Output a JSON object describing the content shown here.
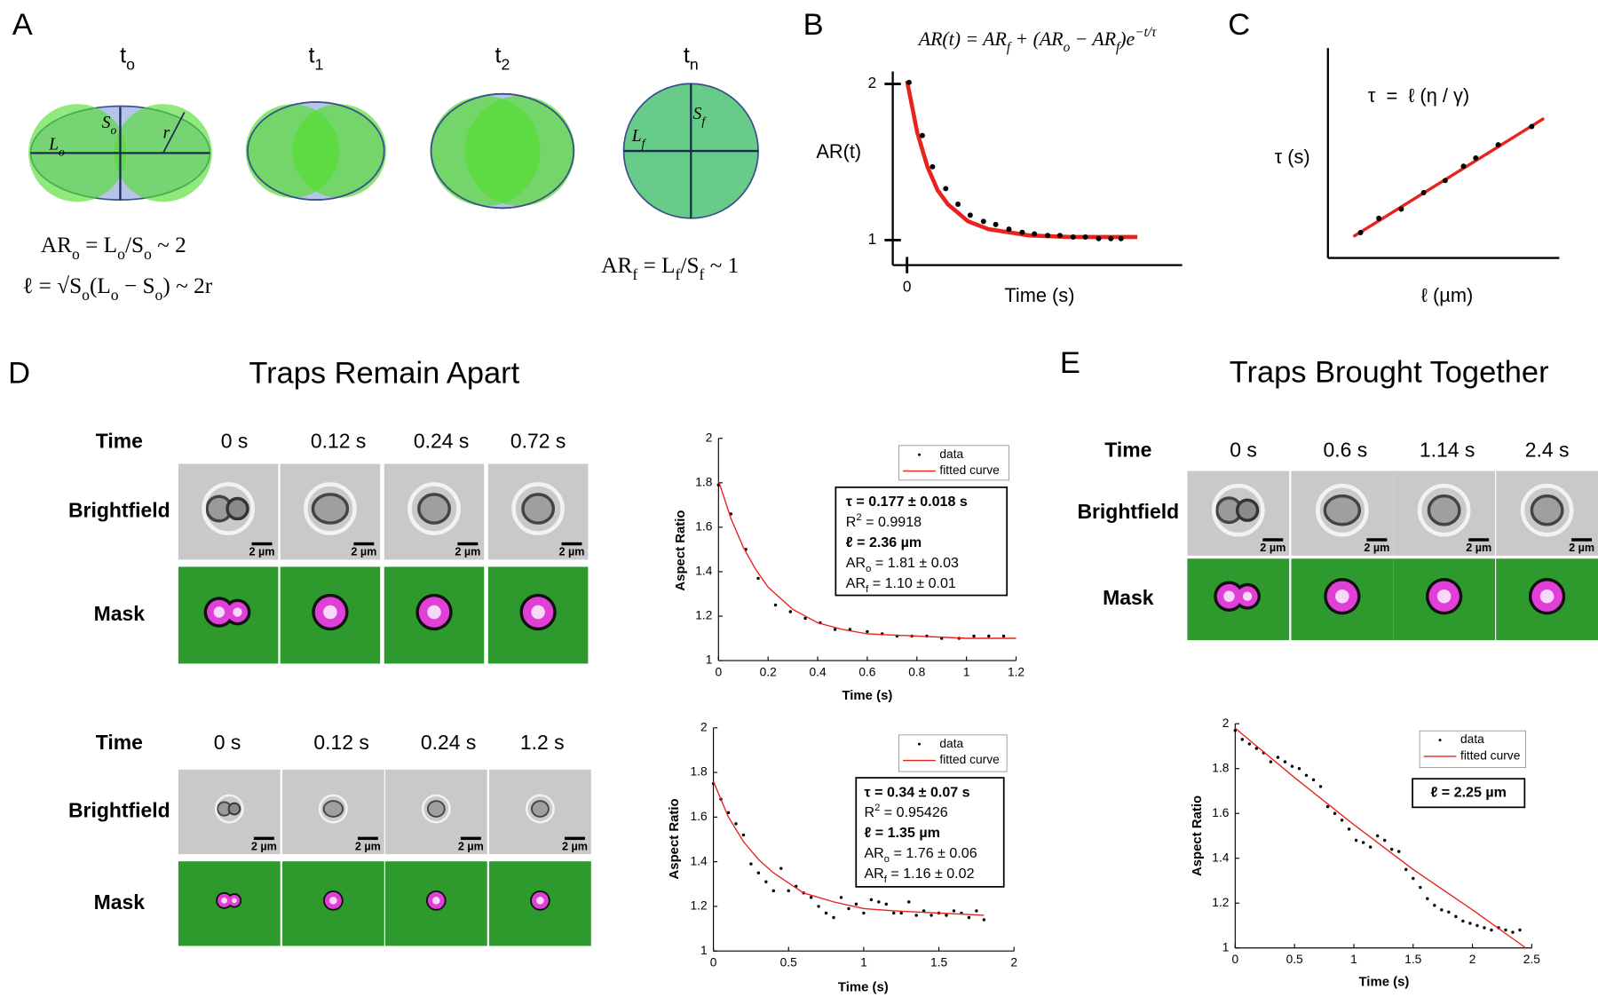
{
  "panel_labels": [
    "A",
    "B",
    "C",
    "D",
    "E"
  ],
  "panel_a": {
    "stages": [
      [
        {
          "t": "t"
        },
        {
          "sub": "o"
        }
      ],
      [
        {
          "t": "t"
        },
        {
          "sub": "1"
        }
      ],
      [
        {
          "t": "t"
        },
        {
          "sub": "2"
        }
      ],
      [
        {
          "t": "t"
        },
        {
          "sub": "n"
        }
      ]
    ],
    "initial_labels": {
      "short_axis": [
        {
          "t": "S"
        },
        {
          "sub": "o"
        }
      ],
      "long_axis": [
        {
          "t": "L"
        },
        {
          "sub": "o"
        }
      ],
      "radius": [
        {
          "t": "r"
        }
      ]
    },
    "final_labels": {
      "long_axis": [
        {
          "t": "L"
        },
        {
          "sub": "f"
        }
      ],
      "short_axis": [
        {
          "t": "S"
        },
        {
          "sub": "f"
        }
      ]
    },
    "formulas": [
      [
        {
          "t": "AR"
        },
        {
          "sub": "o"
        },
        {
          "t": " = L"
        },
        {
          "sub": "o"
        },
        {
          "t": "/S"
        },
        {
          "sub": "o"
        },
        {
          "t": " ~ 2"
        }
      ],
      [
        {
          "t": "ℓ = √S"
        },
        {
          "sub": "o"
        },
        {
          "t": "(L"
        },
        {
          "sub": "o"
        },
        {
          "t": " − S"
        },
        {
          "sub": "o"
        },
        {
          "t": ") ~ 2r"
        }
      ],
      [
        {
          "t": "AR"
        },
        {
          "sub": "f"
        },
        {
          "t": " = L"
        },
        {
          "sub": "f"
        },
        {
          "t": "/S"
        },
        {
          "sub": "f"
        },
        {
          "t": " ~ 1"
        }
      ]
    ]
  },
  "chart_data": [
    {
      "type": "scatter",
      "xlabel": "Time (s)",
      "ylabel": "AR(t)",
      "annotations": [
        {
          "segments": [
            {
              "t": "AR(t) = AR"
            },
            {
              "sub": "f"
            },
            {
              "t": " + (AR"
            },
            {
              "sub": "o"
            },
            {
              "t": " − AR"
            },
            {
              "sub": "f"
            },
            {
              "t": ")e"
            },
            {
              "sup": "−t/τ"
            }
          ]
        }
      ],
      "xlim": [
        -0.07,
        1.35
      ],
      "ylim": [
        0.84,
        2.08
      ],
      "xticks": [
        0
      ],
      "yticks": [
        1,
        2
      ],
      "series": [
        {
          "type": "line",
          "color": "#e8231c",
          "x": [
            0,
            0.05,
            0.1,
            0.15,
            0.2,
            0.3,
            0.4,
            0.5,
            0.6,
            0.8,
            1.0,
            1.13
          ],
          "values": [
            2.02,
            1.69,
            1.47,
            1.32,
            1.23,
            1.12,
            1.07,
            1.05,
            1.03,
            1.02,
            1.02,
            1.02
          ]
        },
        {
          "type": "scatter",
          "color": "#000000",
          "x": [
            0.01,
            0.075,
            0.125,
            0.19,
            0.25,
            0.31,
            0.375,
            0.435,
            0.5,
            0.565,
            0.625,
            0.69,
            0.75,
            0.815,
            0.875,
            0.94,
            1.0,
            1.05
          ],
          "values": [
            2.01,
            1.67,
            1.47,
            1.33,
            1.23,
            1.16,
            1.12,
            1.1,
            1.07,
            1.05,
            1.04,
            1.03,
            1.03,
            1.02,
            1.02,
            1.01,
            1.01,
            1.01
          ]
        }
      ]
    },
    {
      "type": "scatter",
      "xlabel": "ℓ (µm)",
      "ylabel": "τ (s)",
      "annotations": [
        {
          "segments": [
            {
              "t": "τ  =  ℓ (η / γ)"
            }
          ]
        }
      ],
      "xlim": [
        0,
        10
      ],
      "ylim": [
        0,
        10
      ],
      "xticks": [],
      "yticks": [],
      "series": [
        {
          "type": "line",
          "color": "#e8231c",
          "x": [
            1.1,
            9.34
          ],
          "values": [
            1.02,
            6.65
          ]
        },
        {
          "type": "scatter",
          "color": "#000000",
          "x": [
            1.41,
            2.2,
            3.17,
            4.14,
            5.07,
            5.86,
            6.39,
            7.36,
            8.81
          ],
          "values": [
            1.21,
            1.89,
            2.33,
            3.11,
            3.69,
            4.37,
            4.76,
            5.39,
            6.26
          ]
        }
      ]
    },
    {
      "type": "scatter",
      "xlabel": "Time (s)",
      "ylabel": "Aspect Ratio",
      "legend": "upper right",
      "annotations": [
        {
          "bold": true,
          "segments": [
            {
              "t": "τ = 0.177 ± 0.018 s"
            }
          ]
        },
        {
          "segments": [
            {
              "t": "R"
            },
            {
              "sup": "2"
            },
            {
              "t": " = 0.9918"
            }
          ]
        },
        {
          "bold": true,
          "segments": [
            {
              "t": "ℓ = 2.36 µm"
            }
          ]
        },
        {
          "segments": [
            {
              "t": "AR"
            },
            {
              "sub": "o"
            },
            {
              "t": " = 1.81 ± 0.03"
            }
          ]
        },
        {
          "segments": [
            {
              "t": "AR"
            },
            {
              "sub": "f"
            },
            {
              "t": " = 1.10 ± 0.01"
            }
          ]
        }
      ],
      "xlim": [
        0,
        1.2
      ],
      "ylim": [
        1,
        2
      ],
      "xticks": [
        0,
        0.2,
        0.4,
        0.6,
        0.8,
        1,
        1.2
      ],
      "yticks": [
        1,
        1.2,
        1.4,
        1.6,
        1.8,
        2
      ],
      "series": [
        {
          "name": "data",
          "type": "scatter",
          "color": "#000000",
          "x": [
            0,
            0.05,
            0.11,
            0.16,
            0.23,
            0.29,
            0.35,
            0.41,
            0.47,
            0.53,
            0.6,
            0.66,
            0.72,
            0.78,
            0.84,
            0.9,
            0.97,
            1.03,
            1.09,
            1.15
          ],
          "values": [
            1.79,
            1.66,
            1.5,
            1.37,
            1.25,
            1.22,
            1.19,
            1.17,
            1.14,
            1.14,
            1.13,
            1.12,
            1.11,
            1.11,
            1.11,
            1.1,
            1.1,
            1.11,
            1.11,
            1.11
          ]
        },
        {
          "name": "fitted curve",
          "type": "line",
          "color": "#e8231c",
          "x": [
            0,
            0.05,
            0.1,
            0.15,
            0.2,
            0.3,
            0.4,
            0.5,
            0.6,
            0.8,
            1.0,
            1.2
          ],
          "values": [
            1.81,
            1.64,
            1.51,
            1.41,
            1.33,
            1.23,
            1.17,
            1.14,
            1.12,
            1.11,
            1.1,
            1.1
          ]
        }
      ]
    },
    {
      "type": "scatter",
      "xlabel": "Time (s)",
      "ylabel": "Aspect Ratio",
      "legend": "upper right",
      "annotations": [
        {
          "bold": true,
          "segments": [
            {
              "t": "τ = 0.34 ± 0.07 s"
            }
          ]
        },
        {
          "segments": [
            {
              "t": "R"
            },
            {
              "sup": "2"
            },
            {
              "t": " = 0.95426"
            }
          ]
        },
        {
          "bold": true,
          "segments": [
            {
              "t": "ℓ = 1.35 µm"
            }
          ]
        },
        {
          "segments": [
            {
              "t": "AR"
            },
            {
              "sub": "o"
            },
            {
              "t": " = 1.76 ± 0.06"
            }
          ]
        },
        {
          "segments": [
            {
              "t": "AR"
            },
            {
              "sub": "f"
            },
            {
              "t": " = 1.16 ± 0.02"
            }
          ]
        }
      ],
      "xlim": [
        0,
        2
      ],
      "ylim": [
        1,
        2
      ],
      "xticks": [
        0,
        0.5,
        1,
        1.5,
        2
      ],
      "yticks": [
        1,
        1.2,
        1.4,
        1.6,
        1.8,
        2
      ],
      "series": [
        {
          "name": "data",
          "type": "scatter",
          "color": "#000000",
          "x": [
            0,
            0.05,
            0.1,
            0.15,
            0.2,
            0.25,
            0.3,
            0.35,
            0.4,
            0.45,
            0.5,
            0.55,
            0.6,
            0.65,
            0.7,
            0.75,
            0.8,
            0.85,
            0.9,
            0.95,
            1.0,
            1.05,
            1.1,
            1.15,
            1.2,
            1.25,
            1.3,
            1.35,
            1.4,
            1.45,
            1.5,
            1.55,
            1.6,
            1.65,
            1.7,
            1.75,
            1.8
          ],
          "values": [
            1.75,
            1.68,
            1.62,
            1.57,
            1.52,
            1.39,
            1.35,
            1.31,
            1.27,
            1.37,
            1.27,
            1.29,
            1.26,
            1.24,
            1.2,
            1.17,
            1.15,
            1.24,
            1.19,
            1.21,
            1.17,
            1.23,
            1.22,
            1.21,
            1.17,
            1.17,
            1.22,
            1.16,
            1.18,
            1.16,
            1.17,
            1.16,
            1.18,
            1.17,
            1.15,
            1.18,
            1.14
          ]
        },
        {
          "name": "fitted curve",
          "type": "line",
          "color": "#e8231c",
          "x": [
            0,
            0.1,
            0.2,
            0.3,
            0.4,
            0.6,
            0.8,
            1.0,
            1.2,
            1.5,
            1.8
          ],
          "values": [
            1.76,
            1.6,
            1.49,
            1.41,
            1.35,
            1.26,
            1.22,
            1.19,
            1.18,
            1.17,
            1.16
          ]
        }
      ]
    },
    {
      "type": "scatter",
      "xlabel": "Time (s)",
      "ylabel": "Aspect Ratio",
      "legend": "upper right",
      "annotations": [
        {
          "bold": true,
          "segments": [
            {
              "t": "ℓ = 2.25 µm"
            }
          ]
        }
      ],
      "xlim": [
        0,
        2.5
      ],
      "ylim": [
        1,
        2
      ],
      "xticks": [
        0,
        0.5,
        1,
        1.5,
        2,
        2.5
      ],
      "yticks": [
        1,
        1.2,
        1.4,
        1.6,
        1.8,
        2
      ],
      "series": [
        {
          "name": "data",
          "type": "scatter",
          "color": "#000000",
          "x": [
            0,
            0.06,
            0.12,
            0.18,
            0.24,
            0.3,
            0.36,
            0.42,
            0.48,
            0.54,
            0.6,
            0.66,
            0.72,
            0.78,
            0.84,
            0.9,
            0.96,
            1.02,
            1.08,
            1.14,
            1.2,
            1.26,
            1.32,
            1.38,
            1.44,
            1.5,
            1.56,
            1.62,
            1.68,
            1.74,
            1.8,
            1.86,
            1.92,
            1.98,
            2.04,
            2.1,
            2.16,
            2.22,
            2.28,
            2.34,
            2.4
          ],
          "values": [
            1.97,
            1.93,
            1.91,
            1.89,
            1.87,
            1.83,
            1.85,
            1.83,
            1.81,
            1.8,
            1.77,
            1.75,
            1.72,
            1.63,
            1.6,
            1.57,
            1.53,
            1.48,
            1.47,
            1.45,
            1.5,
            1.48,
            1.44,
            1.43,
            1.35,
            1.31,
            1.27,
            1.22,
            1.19,
            1.17,
            1.16,
            1.14,
            1.12,
            1.11,
            1.1,
            1.09,
            1.08,
            1.09,
            1.08,
            1.07,
            1.08
          ]
        },
        {
          "name": "fitted curve",
          "type": "line",
          "color": "#e8231c",
          "x": [
            0,
            0.5,
            1,
            1.5,
            2,
            2.45
          ],
          "values": [
            1.98,
            1.76,
            1.55,
            1.35,
            1.17,
            1.0
          ]
        }
      ]
    }
  ],
  "panel_d": {
    "title": "Traps Remain Apart",
    "row_labels": [
      "Time",
      "Brightfield",
      "Mask"
    ],
    "scale_bar": "2 µm",
    "groups": [
      {
        "times": [
          "0 s",
          "0.12 s",
          "0.24 s",
          "0.72 s"
        ]
      },
      {
        "times": [
          "0 s",
          "0.12 s",
          "0.24 s",
          "1.2 s"
        ]
      }
    ]
  },
  "panel_e": {
    "title": "Traps Brought Together",
    "row_labels": [
      "Time",
      "Brightfield",
      "Mask"
    ],
    "scale_bar": "2 µm",
    "times": [
      "0 s",
      "0.6 s",
      "1.14 s",
      "2.4 s"
    ]
  }
}
